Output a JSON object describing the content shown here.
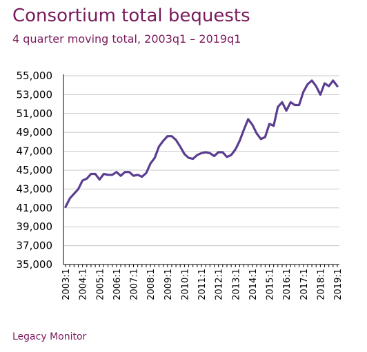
{
  "title": "Consortium total bequests",
  "subtitle": "4 quarter moving total, 2003q1 – 2019q1",
  "source": "Legacy Monitor",
  "colors": {
    "text_accent": "#7a1a5c",
    "series": "#5a3d8f",
    "axis": "#000000",
    "grid": "#c8c8c8"
  },
  "chart_data": {
    "type": "line",
    "title": "Consortium total bequests",
    "subtitle": "4 quarter moving total, 2003q1 – 2019q1",
    "xlabel": "",
    "ylabel": "",
    "ylim": [
      35000,
      55000
    ],
    "grid": true,
    "legend": "none",
    "yticks": [
      "35,000",
      "37,000",
      "39,000",
      "41,000",
      "43,000",
      "45,000",
      "47,000",
      "49,000",
      "51,000",
      "53,000",
      "55,000"
    ],
    "xticks": [
      "2003:1",
      "2004:1",
      "2005:1",
      "2006:1",
      "2007:1",
      "2008:1",
      "2009:1",
      "2010:1",
      "2011:1",
      "2012:1",
      "2013:1",
      "2014:1",
      "2015:1",
      "2016:1",
      "2017:1",
      "2018:1",
      "2019:1"
    ],
    "x": [
      "2003:1",
      "2003:2",
      "2003:3",
      "2003:4",
      "2004:1",
      "2004:2",
      "2004:3",
      "2004:4",
      "2005:1",
      "2005:2",
      "2005:3",
      "2005:4",
      "2006:1",
      "2006:2",
      "2006:3",
      "2006:4",
      "2007:1",
      "2007:2",
      "2007:3",
      "2007:4",
      "2008:1",
      "2008:2",
      "2008:3",
      "2008:4",
      "2009:1",
      "2009:2",
      "2009:3",
      "2009:4",
      "2010:1",
      "2010:2",
      "2010:3",
      "2010:4",
      "2011:1",
      "2011:2",
      "2011:3",
      "2011:4",
      "2012:1",
      "2012:2",
      "2012:3",
      "2012:4",
      "2013:1",
      "2013:2",
      "2013:3",
      "2013:4",
      "2014:1",
      "2014:2",
      "2014:3",
      "2014:4",
      "2015:1",
      "2015:2",
      "2015:3",
      "2015:4",
      "2016:1",
      "2016:2",
      "2016:3",
      "2016:4",
      "2017:1",
      "2017:2",
      "2017:3",
      "2017:4",
      "2018:1",
      "2018:2",
      "2018:3",
      "2018:4",
      "2019:1"
    ],
    "series": [
      {
        "values": [
          41100,
          42000,
          42500,
          43000,
          43900,
          44100,
          44600,
          44600,
          44000,
          44600,
          44500,
          44500,
          44800,
          44400,
          44800,
          44800,
          44400,
          44500,
          44300,
          44700,
          45700,
          46300,
          47500,
          48100,
          48600,
          48600,
          48200,
          47500,
          46700,
          46300,
          46200,
          46600,
          46800,
          46900,
          46800,
          46500,
          46900,
          46900,
          46400,
          46600,
          47200,
          48100,
          49300,
          50400,
          49800,
          48900,
          48300,
          48500,
          49900,
          49700,
          51700,
          52200,
          51300,
          52200,
          51900,
          51900,
          53300,
          54100,
          54500,
          53900,
          53000,
          54200,
          53900,
          54500,
          53900
        ]
      }
    ]
  }
}
